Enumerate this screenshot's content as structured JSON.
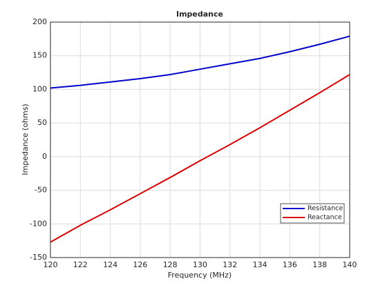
{
  "chart_data": {
    "type": "line",
    "title": "Impedance",
    "xlabel": "Frequency (MHz)",
    "ylabel": "Impedance (ohms)",
    "x": [
      120,
      122,
      124,
      126,
      128,
      130,
      132,
      134,
      136,
      138,
      140
    ],
    "series": [
      {
        "name": "Resistance",
        "color": "#0000cc",
        "values": [
          102,
          106,
          111,
          116,
          122,
          130,
          138,
          146,
          156,
          167,
          179
        ]
      },
      {
        "name": "Reactance",
        "color": "#dd0000",
        "values": [
          -127,
          -102,
          -79,
          -55,
          -31,
          -6,
          18,
          43,
          69,
          95,
          122
        ]
      }
    ],
    "xlim": [
      120,
      140
    ],
    "xticks": [
      120,
      122,
      124,
      126,
      128,
      130,
      132,
      134,
      136,
      138,
      140
    ],
    "ylim": [
      -150,
      200
    ],
    "yticks": [
      -150,
      -100,
      -50,
      0,
      50,
      100,
      150,
      200
    ],
    "grid": true,
    "legend": "southeast"
  }
}
